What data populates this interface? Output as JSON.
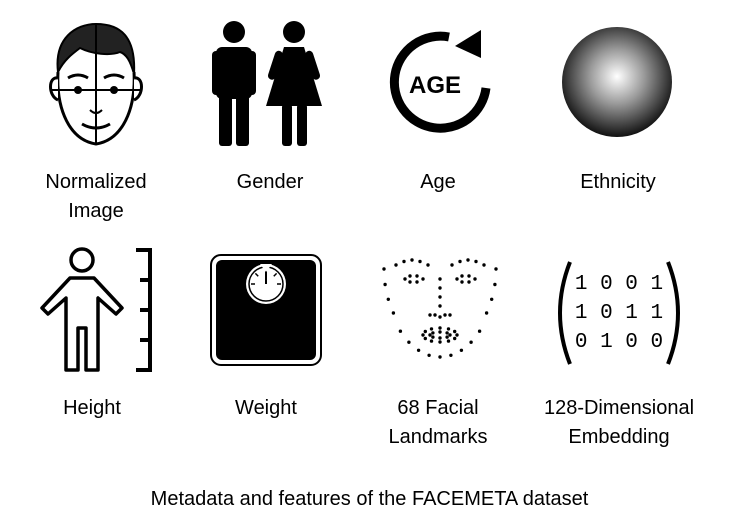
{
  "features": [
    {
      "id": "normalized_image",
      "label_lines": [
        "Normalized",
        "Image"
      ],
      "icon": "face-icon"
    },
    {
      "id": "gender",
      "label_lines": [
        "Gender"
      ],
      "icon": "gender-icon"
    },
    {
      "id": "age",
      "label_lines": [
        "Age"
      ],
      "icon": "age-icon",
      "icon_text": "AGE"
    },
    {
      "id": "ethnicity",
      "label_lines": [
        "Ethnicity"
      ],
      "icon": "ethnicity-sphere-icon"
    },
    {
      "id": "height",
      "label_lines": [
        "Height"
      ],
      "icon": "height-icon"
    },
    {
      "id": "weight",
      "label_lines": [
        "Weight"
      ],
      "icon": "scale-icon"
    },
    {
      "id": "landmarks",
      "label_lines": [
        "68 Facial",
        "Landmarks"
      ],
      "icon": "facial-landmarks-icon"
    },
    {
      "id": "embedding",
      "label_lines": [
        "128-Dimensional",
        "Embedding"
      ],
      "icon": "binary-embedding-icon",
      "icon_rows": [
        "1 0 0 1",
        "1 0 1 1",
        "0 1 0 0"
      ]
    }
  ],
  "caption": "Metadata and features of the FACEMETA dataset"
}
